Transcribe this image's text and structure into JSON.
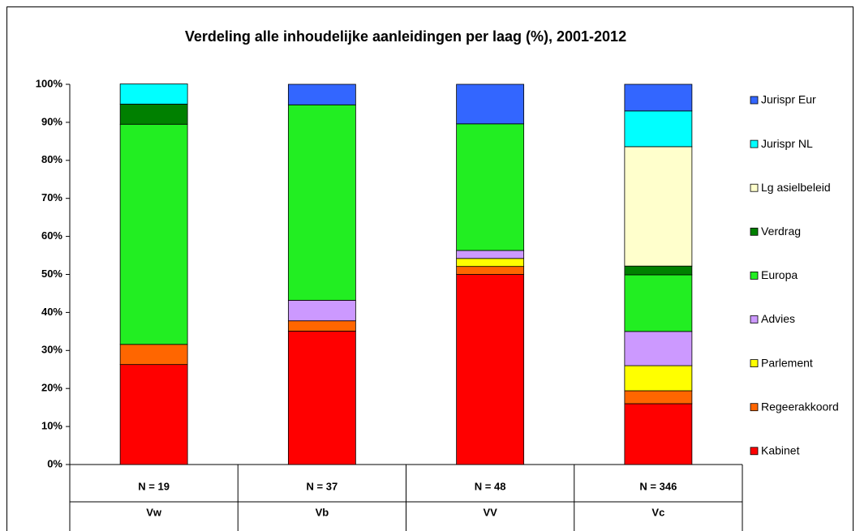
{
  "chart_data": {
    "type": "stacked_bar",
    "title": "Verdeling alle inhoudelijke aanleidingen per laag (%), 2001-2012",
    "categories": [
      "Vw",
      "Vb",
      "VV",
      "Vc"
    ],
    "n_labels": [
      "N = 19",
      "N = 37",
      "N = 48",
      "N = 346"
    ],
    "ylim": [
      0,
      100
    ],
    "yticks": [
      {
        "value": 0,
        "label": "0%"
      },
      {
        "value": 10,
        "label": "10%"
      },
      {
        "value": 20,
        "label": "20%"
      },
      {
        "value": 30,
        "label": "30%"
      },
      {
        "value": 40,
        "label": "40%"
      },
      {
        "value": 50,
        "label": "50%"
      },
      {
        "value": 60,
        "label": "60%"
      },
      {
        "value": 70,
        "label": "70%"
      },
      {
        "value": 80,
        "label": "80%"
      },
      {
        "value": 90,
        "label": "90%"
      },
      {
        "value": 100,
        "label": "100%"
      }
    ],
    "series": [
      {
        "name": "Kabinet",
        "color": "#ff0000",
        "values": [
          26.3,
          35.1,
          50,
          16.0
        ]
      },
      {
        "name": "Regeerakkoord",
        "color": "#ff6600",
        "values": [
          5.3,
          2.7,
          2.1,
          3.4
        ]
      },
      {
        "name": "Parlement",
        "color": "#ffff00",
        "values": [
          0,
          0,
          2.1,
          6.6
        ]
      },
      {
        "name": "Advies",
        "color": "#cc99ff",
        "values": [
          0,
          5.4,
          2.1,
          9.0
        ]
      },
      {
        "name": "Europa",
        "color": "#22ee22",
        "values": [
          57.9,
          51.4,
          33.3,
          14.9
        ]
      },
      {
        "name": "Verdrag",
        "color": "#008000",
        "values": [
          5.3,
          0,
          0,
          2.3
        ]
      },
      {
        "name": "Lg asielbeleid",
        "color": "#ffffcc",
        "values": [
          0,
          0,
          0,
          31.4
        ]
      },
      {
        "name": "Jurispr NL",
        "color": "#00ffff",
        "values": [
          5.3,
          0,
          0,
          9.4
        ]
      },
      {
        "name": "Jurispr Eur",
        "color": "#3366ff",
        "values": [
          0,
          5.4,
          10.4,
          7.0
        ]
      }
    ]
  }
}
